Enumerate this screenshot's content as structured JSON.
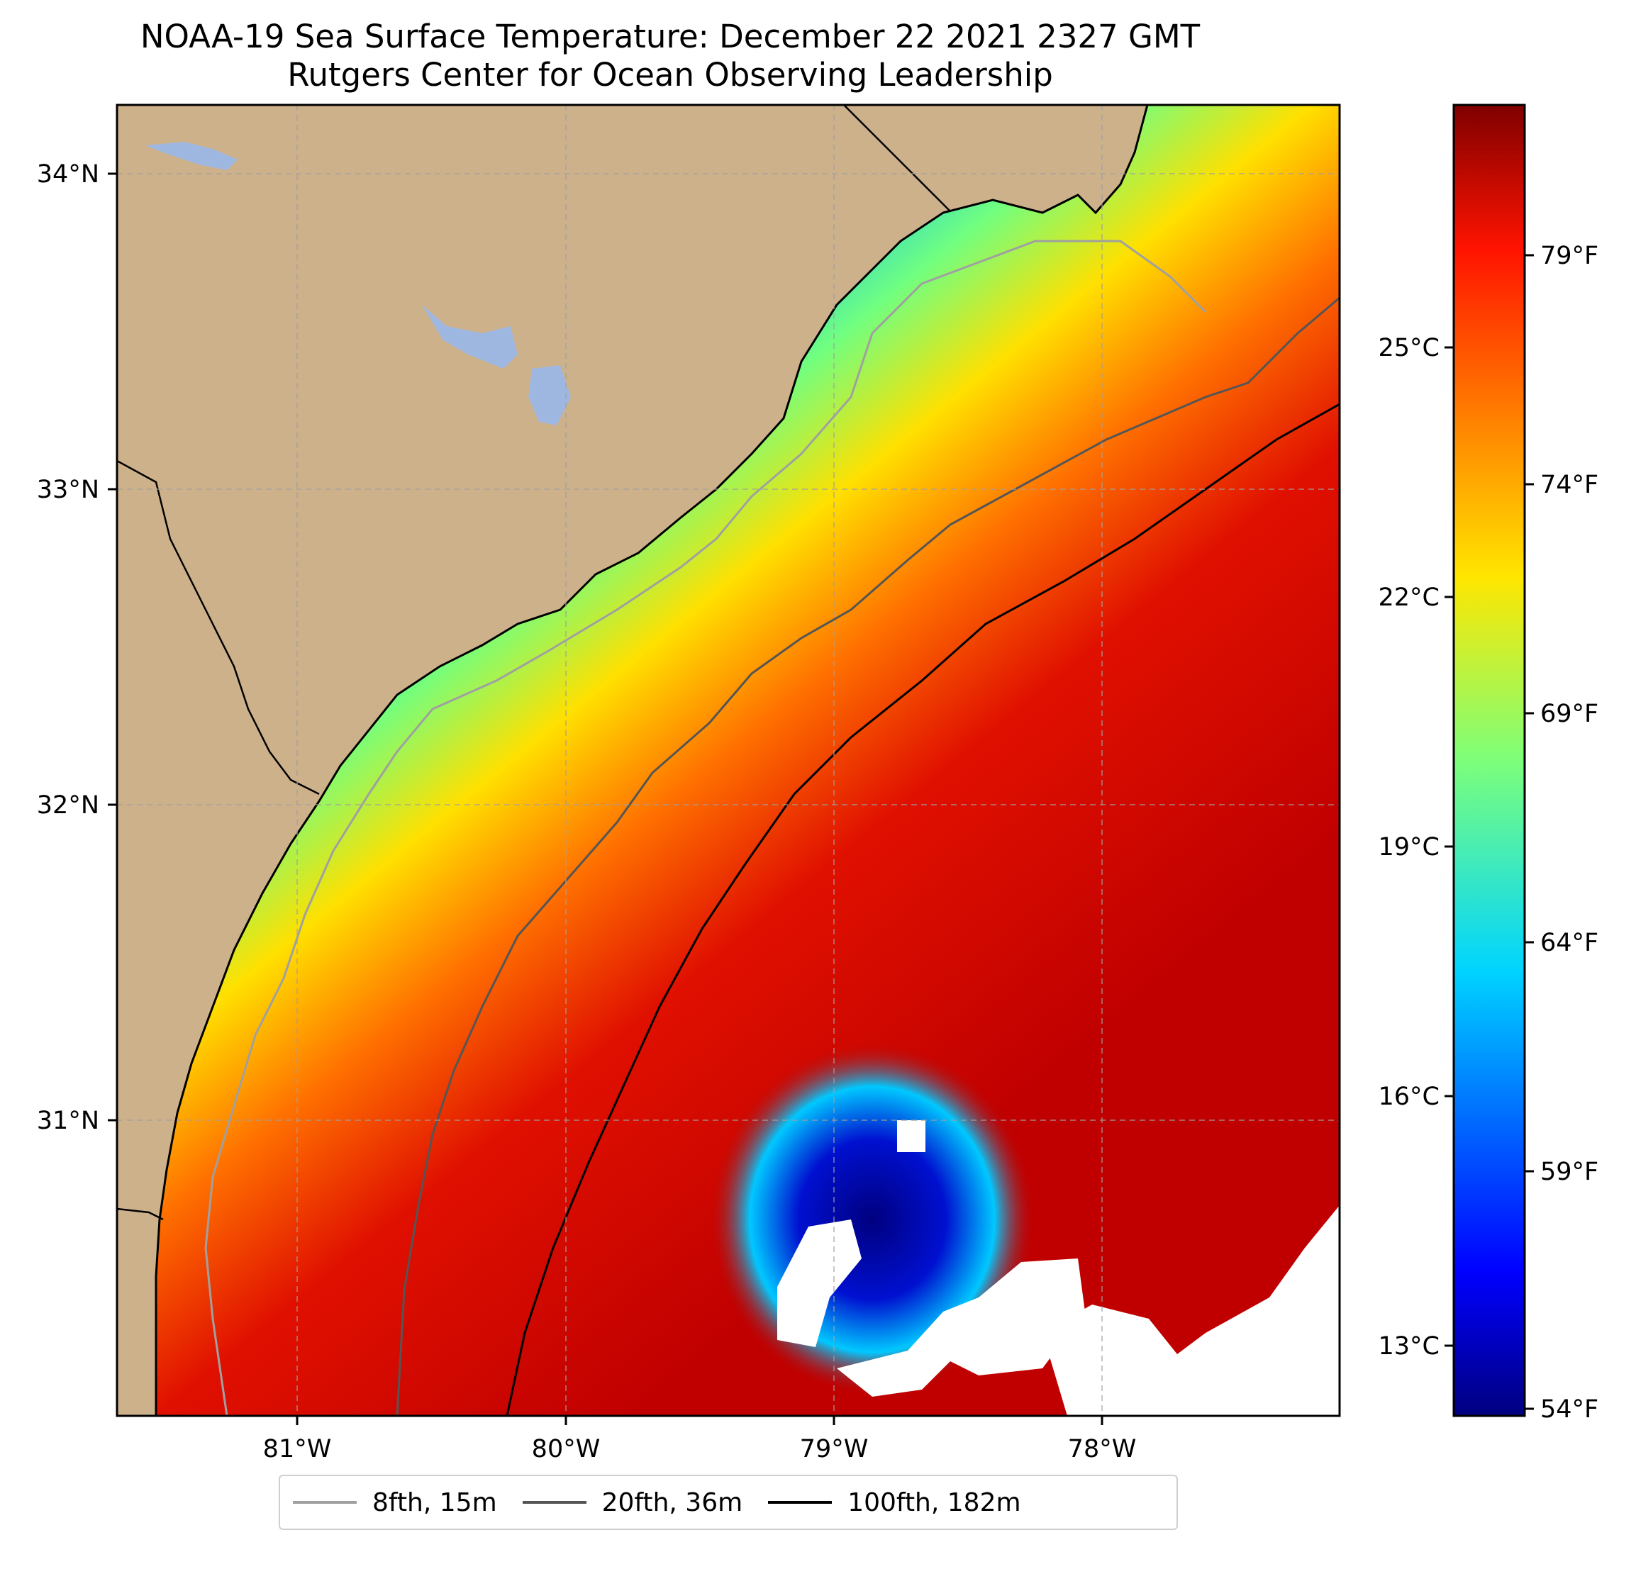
{
  "title_line1": "NOAA-19 Sea Surface Temperature: December 22 2021 2327 GMT",
  "title_line2": "Rutgers Center for Ocean Observing Leadership",
  "map": {
    "lon_ticks": [
      "81°W",
      "80°W",
      "79°W",
      "78°W"
    ],
    "lat_ticks": [
      "34°N",
      "33°N",
      "32°N",
      "31°N"
    ],
    "colors": {
      "land": "#cdb18b",
      "lake": "#9eb7e0",
      "no_data": "#ffffff",
      "gridline": "#a0a0a0",
      "coastline": "#000000"
    }
  },
  "colorbar": {
    "colormap": "jet",
    "fahrenheit_ticks": [
      "79°F",
      "74°F",
      "69°F",
      "64°F",
      "59°F",
      "54°F"
    ],
    "celsius_ticks": [
      "25°C",
      "22°C",
      "19°C",
      "16°C",
      "13°C"
    ]
  },
  "legend": {
    "items": [
      {
        "label": "8fth, 15m",
        "color": "#a0a0a0"
      },
      {
        "label": "20fth, 36m",
        "color": "#555555"
      },
      {
        "label": "100fth, 182m",
        "color": "#000000"
      }
    ]
  }
}
